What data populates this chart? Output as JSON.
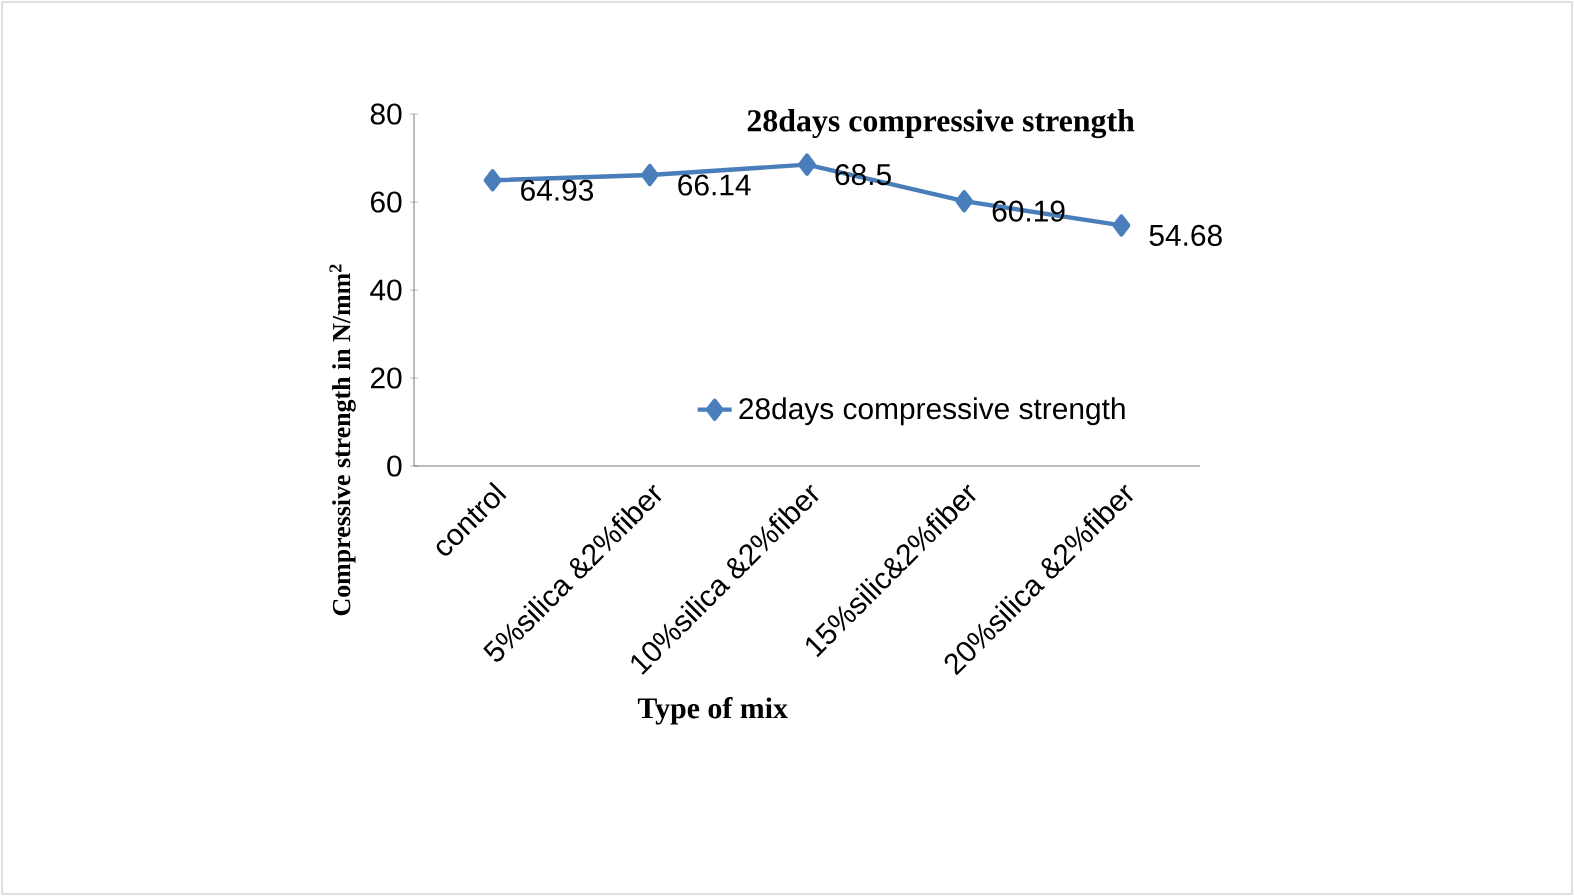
{
  "chart_data": {
    "type": "line",
    "title": "28days compressive strength",
    "xlabel": "Type of mix",
    "ylabel": "Compressive strength in N/mm$^{2}$",
    "categories": [
      "control",
      "5%silica &2%fiber",
      "10%silica &2%fiber",
      "15%silic&2%fiber",
      "20%silica &2%fiber"
    ],
    "series": [
      {
        "name": "28days compressive strength",
        "color": "#4a7ebb",
        "values": [
          64.93,
          66.14,
          68.5,
          60.19,
          54.68
        ]
      }
    ],
    "ylim": [
      0,
      80
    ],
    "yticks": [
      0,
      20,
      40,
      60,
      80
    ],
    "data_labels": true,
    "legend": "right",
    "marker": "diamond",
    "line_style": "solid"
  }
}
